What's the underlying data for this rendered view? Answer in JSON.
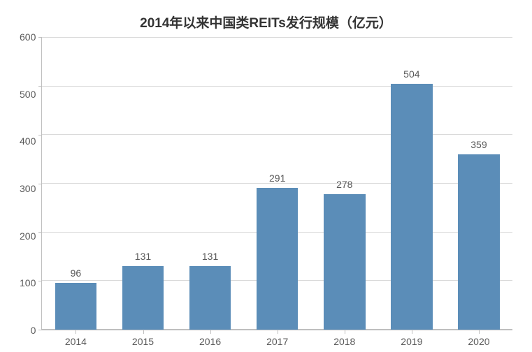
{
  "chart": {
    "type": "bar",
    "title": "2014年以来中国类REITs发行规模（亿元）",
    "title_fontsize": 19,
    "title_color": "#333333",
    "categories": [
      "2014",
      "2015",
      "2016",
      "2017",
      "2018",
      "2019",
      "2020"
    ],
    "values": [
      96,
      131,
      131,
      291,
      278,
      504,
      359
    ],
    "bar_color": "#5b8db8",
    "bar_width": 0.62,
    "ylim": [
      0,
      600
    ],
    "ytick_step": 100,
    "yticks": [
      600,
      500,
      400,
      300,
      200,
      100,
      0
    ],
    "grid_color": "#d9d9d9",
    "axis_color": "#bfbfbf",
    "background_color": "#ffffff",
    "tick_fontsize": 14,
    "label_fontsize": 14,
    "value_label_fontsize": 14,
    "text_color": "#595959"
  }
}
